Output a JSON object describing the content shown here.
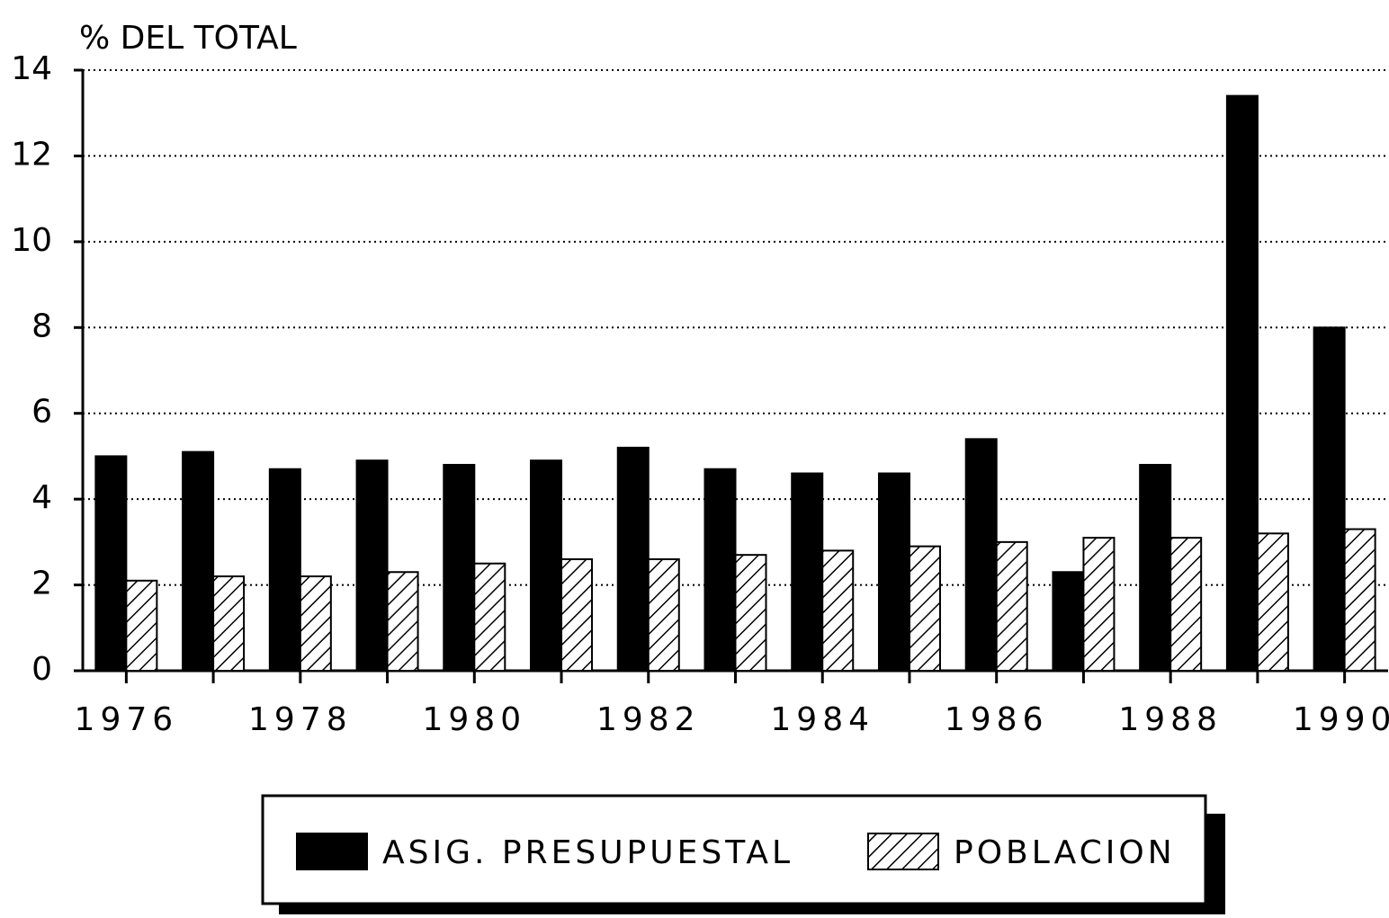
{
  "chart_data": {
    "type": "bar",
    "title": "% DEL TOTAL",
    "categories": [
      "1976",
      null,
      "1978",
      null,
      "1980",
      null,
      "1982",
      null,
      "1984",
      null,
      "1986",
      null,
      "1988",
      null,
      "1990"
    ],
    "series": [
      {
        "name": "ASIG. PRESUPUESTAL",
        "color": "#000000",
        "hatch": false,
        "values": [
          5.0,
          5.1,
          4.7,
          4.9,
          4.8,
          4.9,
          5.2,
          4.7,
          4.6,
          4.6,
          5.4,
          2.3,
          4.8,
          13.4,
          8.0
        ]
      },
      {
        "name": "POBLACION",
        "color": "#000000",
        "hatch": true,
        "values": [
          2.1,
          2.2,
          2.2,
          2.3,
          2.5,
          2.6,
          2.6,
          2.7,
          2.8,
          2.9,
          3.0,
          3.1,
          3.1,
          3.2,
          3.3
        ]
      }
    ],
    "ylim": [
      0,
      14
    ],
    "yticks": [
      0,
      2,
      4,
      6,
      8,
      10,
      12,
      14
    ],
    "grid": true
  }
}
